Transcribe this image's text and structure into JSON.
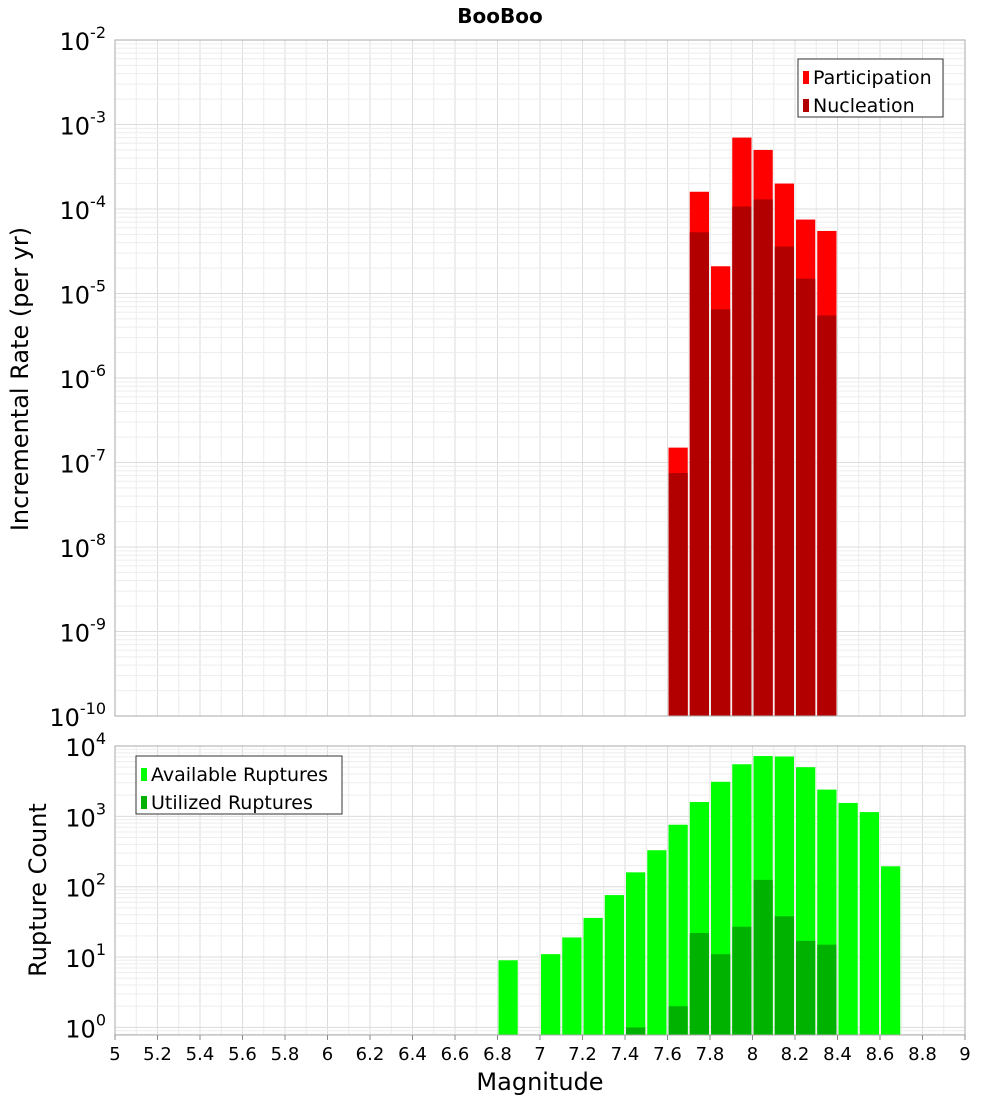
{
  "chart_data": [
    {
      "type": "bar",
      "title": "BooBoo",
      "xlabel": "",
      "ylabel": "Incremental Rate (per yr)",
      "yscale": "log",
      "ylim": [
        1e-10,
        0.01
      ],
      "xlim": [
        5,
        9
      ],
      "grid": true,
      "legend_position": "top-right",
      "overlay": true,
      "bin_width": 0.1,
      "y_tick_bases": [
        "10",
        "10",
        "10",
        "10",
        "10",
        "10",
        "10",
        "10",
        "10"
      ],
      "y_tick_exponents": [
        "-10",
        "-9",
        "-8",
        "-7",
        "-6",
        "-5",
        "-4",
        "-3",
        "-2"
      ],
      "x": [
        7.65,
        7.75,
        7.85,
        7.95,
        8.05,
        8.15,
        8.25,
        8.35
      ],
      "series": [
        {
          "name": "Participation",
          "color": "#ff0000",
          "values": [
            1.5e-07,
            0.00016,
            2.1e-05,
            0.0007,
            0.0005,
            0.0002,
            7.5e-05,
            5.5e-05
          ]
        },
        {
          "name": "Nucleation",
          "color": "#b20000",
          "values": [
            7.5e-08,
            5.3e-05,
            6.5e-06,
            0.000107,
            0.00013,
            3.6e-05,
            1.5e-05,
            5.5e-06
          ]
        }
      ]
    },
    {
      "type": "bar",
      "title": "",
      "xlabel": "Magnitude",
      "ylabel": "Rupture Count",
      "yscale": "log",
      "ylim": [
        0.78,
        10000
      ],
      "xlim": [
        5,
        9
      ],
      "grid": true,
      "legend_position": "top-left",
      "overlay": true,
      "bin_width": 0.1,
      "x_tick_labels": [
        "5",
        "5.2",
        "5.4",
        "5.6",
        "5.8",
        "6",
        "6.2",
        "6.4",
        "6.6",
        "6.8",
        "7",
        "7.2",
        "7.4",
        "7.6",
        "7.8",
        "8",
        "8.2",
        "8.4",
        "8.6",
        "8.8",
        "9"
      ],
      "y_tick_bases": [
        "10",
        "10",
        "10",
        "10",
        "10"
      ],
      "y_tick_exponents": [
        "0",
        "1",
        "2",
        "3",
        "4"
      ],
      "series": [
        {
          "name": "Available Ruptures",
          "color": "#00ff00",
          "x": [
            6.85,
            7.05,
            7.15,
            7.25,
            7.35,
            7.45,
            7.55,
            7.65,
            7.75,
            7.85,
            7.95,
            8.05,
            8.15,
            8.25,
            8.35,
            8.45,
            8.55,
            8.65
          ],
          "values": [
            9,
            11,
            19,
            36,
            76,
            160,
            330,
            760,
            1600,
            3100,
            5500,
            7200,
            7100,
            5000,
            2400,
            1550,
            1150,
            195
          ]
        },
        {
          "name": "Utilized Ruptures",
          "color": "#00b200",
          "x": [
            7.45,
            7.65,
            7.75,
            7.85,
            7.95,
            8.05,
            8.15,
            8.25,
            8.35
          ],
          "values": [
            1,
            2,
            22,
            11,
            27,
            125,
            38,
            17,
            15
          ]
        }
      ]
    }
  ]
}
